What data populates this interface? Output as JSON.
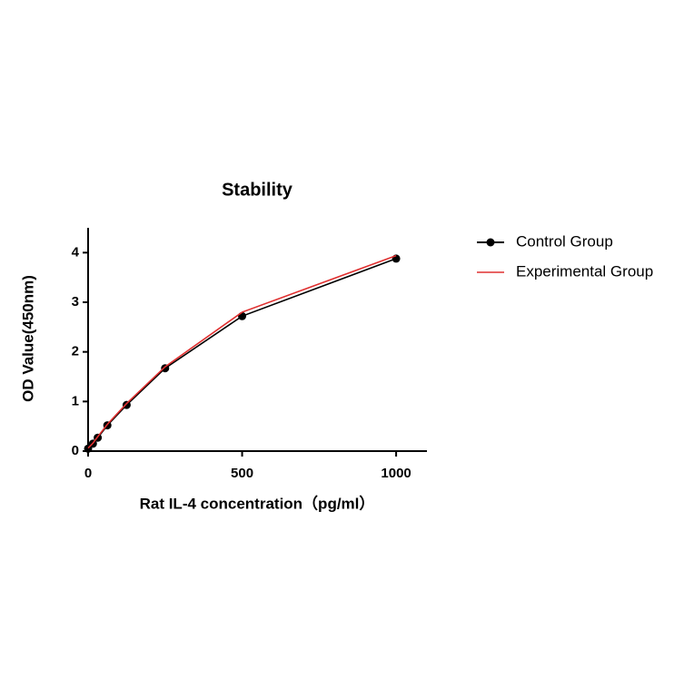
{
  "chart_data": {
    "type": "scatter",
    "title": "Stability",
    "x_label": "Rat IL-4 concentration（pg/ml）",
    "y_label": "OD Value(450nm)",
    "x": [
      0,
      15.6,
      31.25,
      62.5,
      125,
      250,
      500,
      1000
    ],
    "series": [
      {
        "name": "Control Group",
        "color": "#000000",
        "values": [
          0.05,
          0.15,
          0.27,
          0.52,
          0.93,
          1.67,
          2.72,
          3.88
        ]
      },
      {
        "name": "Experimental Group",
        "color": "#e03030",
        "values": [
          0.06,
          0.16,
          0.29,
          0.54,
          0.96,
          1.7,
          2.8,
          3.94
        ]
      }
    ],
    "xlim": [
      0,
      1100
    ],
    "ylim": [
      0,
      4.5
    ],
    "xticks": [
      0,
      500,
      1000
    ],
    "yticks": [
      0,
      1,
      2,
      3,
      4
    ],
    "legend": "right"
  }
}
